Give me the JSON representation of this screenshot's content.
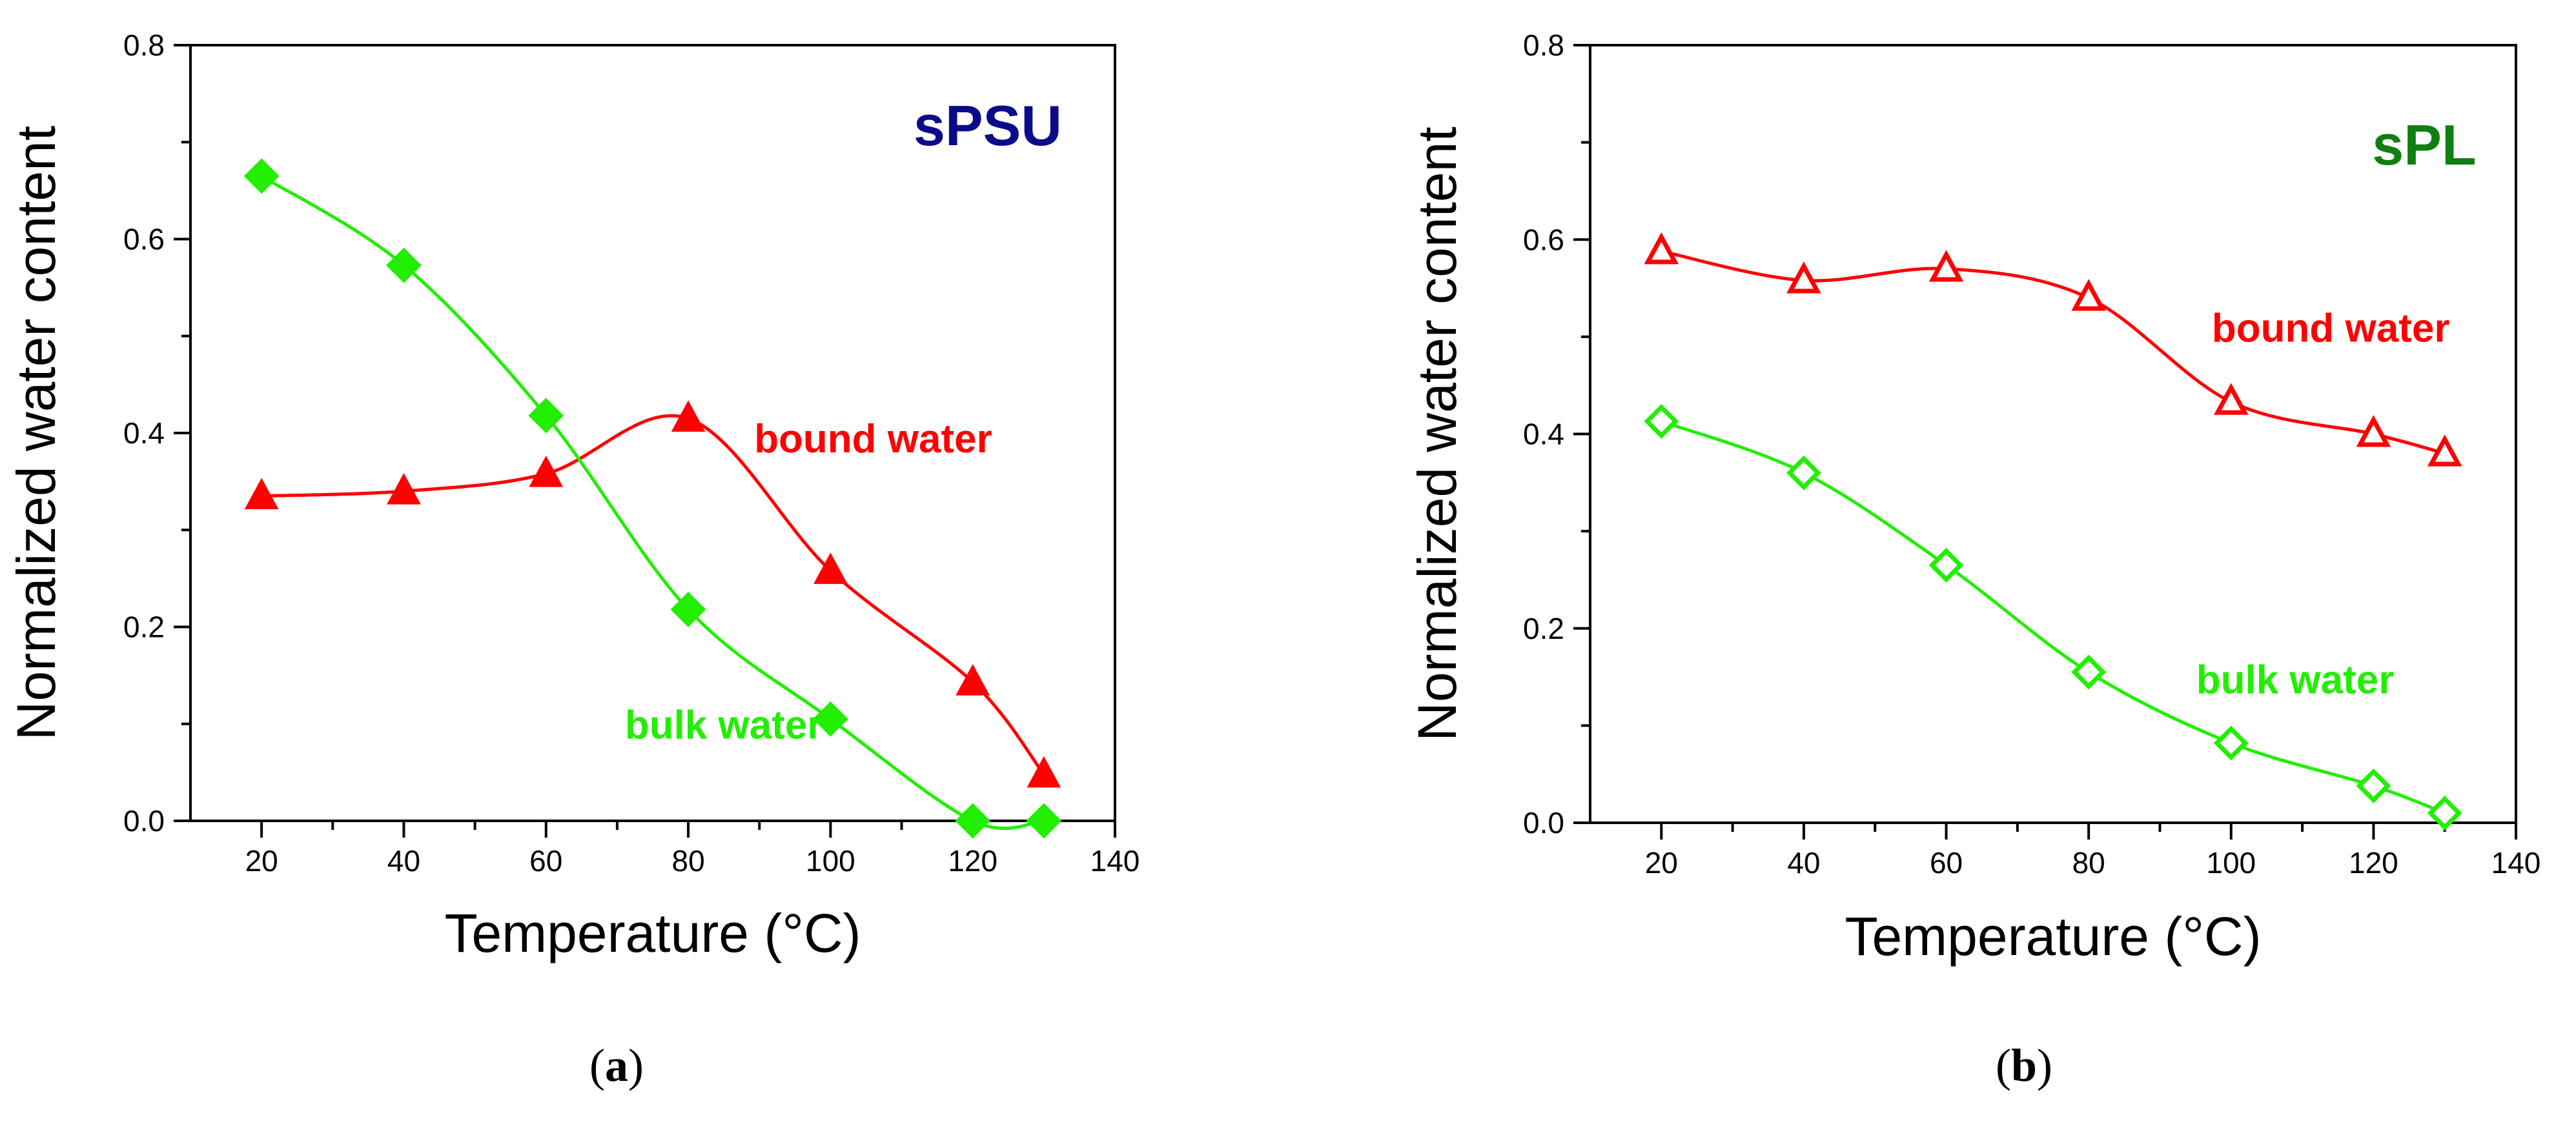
{
  "chart_data": [
    {
      "type": "line",
      "panel_label_open": "(",
      "panel_label_letter": "a",
      "panel_label_close": ")",
      "title": "sPSU",
      "title_color": "#0b0b8a",
      "xlabel": "Temperature (°C)",
      "ylabel": "Normalized water content",
      "xlim": [
        10,
        140
      ],
      "ylim": [
        0,
        0.8
      ],
      "xticks": [
        20,
        40,
        60,
        80,
        100,
        120,
        140
      ],
      "xtick_labels": [
        "20",
        "40",
        "60",
        "80",
        "100",
        "120",
        "140"
      ],
      "yticks": [
        0.0,
        0.2,
        0.4,
        0.6,
        0.8
      ],
      "ytick_labels": [
        "0.0",
        "0.2",
        "0.4",
        "0.6",
        "0.8"
      ],
      "series": [
        {
          "name": "bound water",
          "color": "#ff0000",
          "marker": "triangle",
          "filled": true,
          "x": [
            20,
            40,
            60,
            80,
            100,
            120,
            130
          ],
          "y": [
            0.335,
            0.34,
            0.358,
            0.415,
            0.258,
            0.143,
            0.048
          ],
          "label_x": 106,
          "label_y": 0.38
        },
        {
          "name": "bulk water",
          "color": "#22ee00",
          "marker": "diamond",
          "filled": true,
          "x": [
            20,
            40,
            60,
            80,
            100,
            120,
            130
          ],
          "y": [
            0.665,
            0.573,
            0.418,
            0.218,
            0.105,
            0.0,
            0.0
          ],
          "label_x": 85,
          "label_y": 0.085
        }
      ]
    },
    {
      "type": "line",
      "panel_label_open": "(",
      "panel_label_letter": "b",
      "panel_label_close": ")",
      "title": "sPL",
      "title_color": "#0f7f0f",
      "xlabel": "Temperature (°C)",
      "ylabel": "Normalized water content",
      "xlim": [
        10,
        140
      ],
      "ylim": [
        0,
        0.8
      ],
      "xticks": [
        20,
        40,
        60,
        80,
        100,
        120,
        140
      ],
      "xtick_labels": [
        "20",
        "40",
        "60",
        "80",
        "100",
        "120",
        "140"
      ],
      "yticks": [
        0.0,
        0.2,
        0.4,
        0.6,
        0.8
      ],
      "ytick_labels": [
        "0.0",
        "0.2",
        "0.4",
        "0.6",
        "0.8"
      ],
      "series": [
        {
          "name": "bound water",
          "color": "#ff0000",
          "marker": "triangle",
          "filled": false,
          "x": [
            20,
            40,
            60,
            80,
            100,
            120,
            130
          ],
          "y": [
            0.588,
            0.558,
            0.57,
            0.54,
            0.433,
            0.4,
            0.38
          ],
          "label_x": 114,
          "label_y": 0.495
        },
        {
          "name": "bulk water",
          "color": "#22ee00",
          "marker": "diamond",
          "filled": false,
          "x": [
            20,
            40,
            60,
            80,
            100,
            120,
            130
          ],
          "y": [
            0.413,
            0.36,
            0.265,
            0.155,
            0.082,
            0.038,
            0.01
          ],
          "label_x": 109,
          "label_y": 0.133
        }
      ]
    }
  ]
}
